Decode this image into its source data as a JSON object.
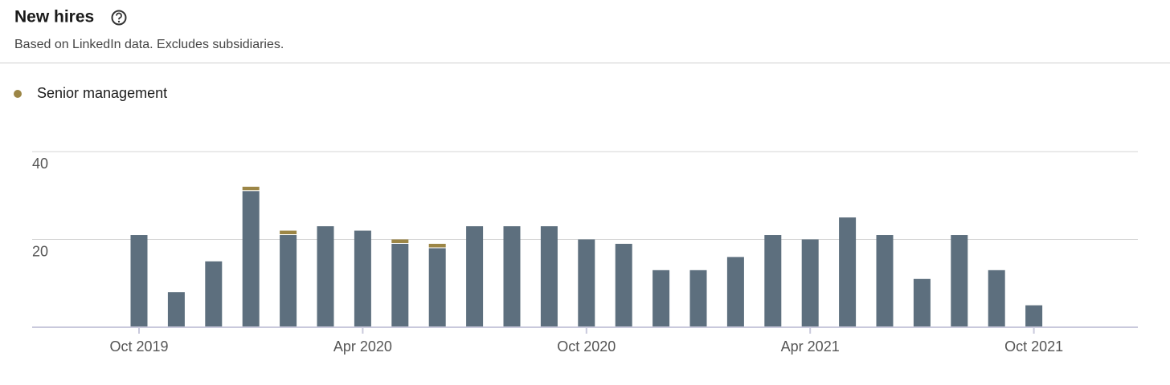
{
  "header": {
    "title": "New hires",
    "subtitle": "Based on LinkedIn data. Excludes subsidiaries."
  },
  "chart_data": {
    "type": "bar",
    "stacked": true,
    "categories": [
      "Oct 2019",
      null,
      null,
      null,
      null,
      null,
      "Apr 2020",
      null,
      null,
      null,
      null,
      null,
      "Oct 2020",
      null,
      null,
      null,
      null,
      null,
      "Apr 2021",
      null,
      null,
      null,
      null,
      null,
      "Oct 2021"
    ],
    "series": [
      {
        "color": "#5d6f7e",
        "values": [
          21,
          8,
          15,
          31,
          21,
          23,
          22,
          19,
          18,
          23,
          23,
          23,
          20,
          19,
          13,
          13,
          16,
          21,
          20,
          25,
          21,
          11,
          21,
          13,
          5
        ]
      },
      {
        "name": "Senior management",
        "color": "#9c8646",
        "values": [
          0,
          0,
          0,
          1,
          1,
          0,
          0,
          1,
          1,
          0,
          0,
          0,
          0,
          0,
          0,
          0,
          0,
          0,
          0,
          0,
          0,
          0,
          0,
          0,
          0
        ]
      }
    ],
    "ylim": [
      0,
      40
    ],
    "yticks": [
      20,
      40
    ],
    "grid": true
  }
}
